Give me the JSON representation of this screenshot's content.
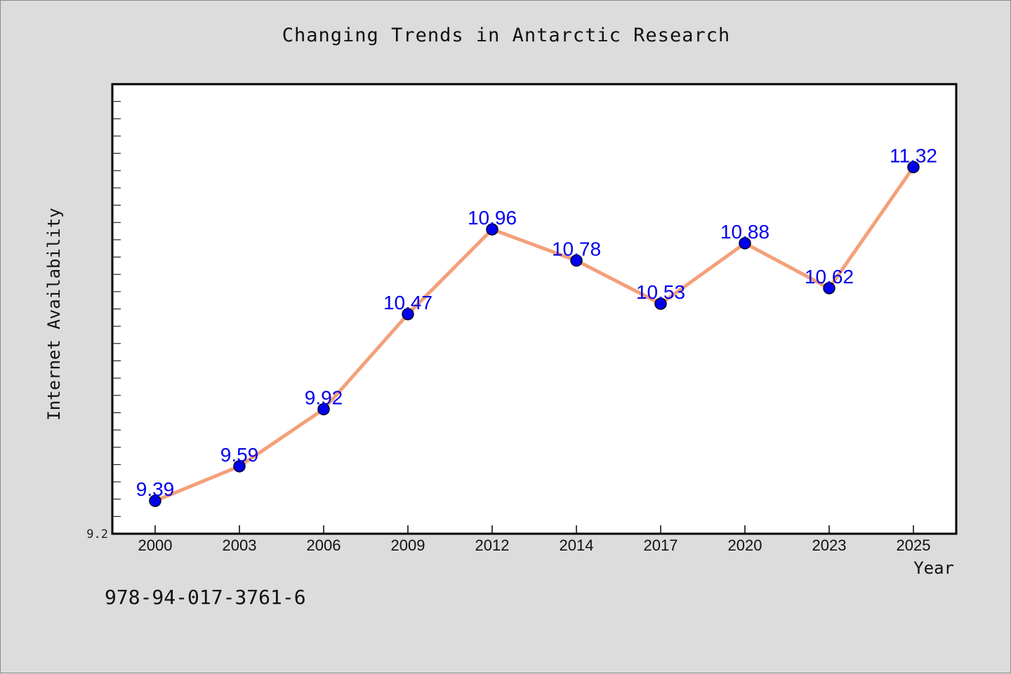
{
  "colors": {
    "background": "#dcdcdc",
    "plot_background": "#ffffff",
    "line": "#f4a07a",
    "marker": "#0000ee",
    "data_label": "#0000ee",
    "axis": "#000000"
  },
  "footnote": "978-94-017-3761-6",
  "chart_data": {
    "type": "line",
    "title": "Changing Trends in Antarctic Research",
    "xlabel": "Year",
    "ylabel": "Internet Availability",
    "categories": [
      "2000",
      "2003",
      "2006",
      "2009",
      "2012",
      "2014",
      "2017",
      "2020",
      "2023",
      "2025"
    ],
    "series": [
      {
        "values": [
          9.39,
          9.59,
          9.92,
          10.47,
          10.96,
          10.78,
          10.53,
          10.88,
          10.62,
          11.32
        ]
      }
    ],
    "data_labels": [
      "9.39",
      "9.59",
      "9.92",
      "10.47",
      "10.96",
      "10.78",
      "10.53",
      "10.88",
      "10.62",
      "11.32"
    ],
    "ylim": [
      9.2,
      11.8
    ],
    "y_tick_label": "9.2",
    "y_minor_step": 0.1,
    "grid": false,
    "legend": "none"
  }
}
